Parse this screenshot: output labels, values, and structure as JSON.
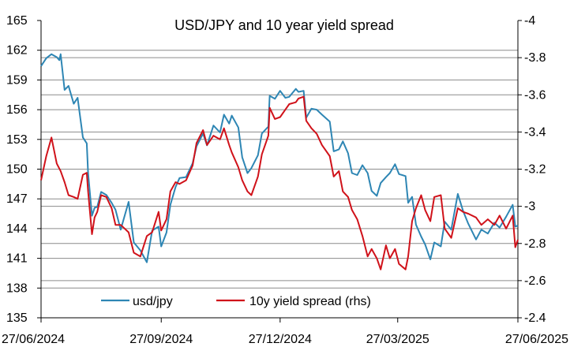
{
  "chart_data": {
    "type": "line",
    "title": "USD/JPY and 10 year yield spread",
    "xlabel": "",
    "ylabel": "",
    "x_tick_labels": [
      "27/06/2024",
      "27/09/2024",
      "27/12/2024",
      "27/03/2025",
      "27/06/2025"
    ],
    "x_range": [
      "27/06/2024",
      "27/06/2025"
    ],
    "y_left": {
      "ylim": [
        135,
        165
      ],
      "ticks": [
        "135",
        "138",
        "141",
        "144",
        "147",
        "150",
        "153",
        "156",
        "159",
        "162",
        "165"
      ]
    },
    "y_right": {
      "ylim": [
        -2.4,
        -4
      ],
      "inverted": true,
      "ticks": [
        "-2.4",
        "-2.6",
        "-2.8",
        "-3",
        "-3.2",
        "-3.4",
        "-3.6",
        "-3.8",
        "-4"
      ]
    },
    "grid": "horizontal",
    "legend_position": "bottom",
    "series": [
      {
        "name": "usd/jpy",
        "axis": "left",
        "color": "#2e86b4",
        "points": [
          [
            "2024-06-27",
            160.4
          ],
          [
            "2024-07-01",
            161.2
          ],
          [
            "2024-07-05",
            161.6
          ],
          [
            "2024-07-09",
            161.3
          ],
          [
            "2024-07-11",
            161.0
          ],
          [
            "2024-07-12",
            161.6
          ],
          [
            "2024-07-15",
            158.0
          ],
          [
            "2024-07-18",
            158.4
          ],
          [
            "2024-07-22",
            156.6
          ],
          [
            "2024-07-25",
            157.2
          ],
          [
            "2024-07-29",
            153.2
          ],
          [
            "2024-08-01",
            152.6
          ],
          [
            "2024-08-02",
            149.6
          ],
          [
            "2024-08-05",
            145.3
          ],
          [
            "2024-08-07",
            146.1
          ],
          [
            "2024-08-09",
            146.2
          ],
          [
            "2024-08-12",
            147.7
          ],
          [
            "2024-08-16",
            147.4
          ],
          [
            "2024-08-20",
            146.6
          ],
          [
            "2024-08-23",
            145.9
          ],
          [
            "2024-08-27",
            143.9
          ],
          [
            "2024-09-02",
            146.7
          ],
          [
            "2024-09-06",
            142.6
          ],
          [
            "2024-09-11",
            141.8
          ],
          [
            "2024-09-16",
            140.6
          ],
          [
            "2024-09-20",
            143.8
          ],
          [
            "2024-09-25",
            144.2
          ],
          [
            "2024-09-27",
            142.2
          ],
          [
            "2024-10-01",
            143.6
          ],
          [
            "2024-10-04",
            146.4
          ],
          [
            "2024-10-08",
            148.2
          ],
          [
            "2024-10-11",
            149.1
          ],
          [
            "2024-10-16",
            149.2
          ],
          [
            "2024-10-21",
            150.6
          ],
          [
            "2024-10-24",
            152.3
          ],
          [
            "2024-10-29",
            153.6
          ],
          [
            "2024-11-01",
            152.4
          ],
          [
            "2024-11-06",
            154.4
          ],
          [
            "2024-11-11",
            153.7
          ],
          [
            "2024-11-14",
            155.5
          ],
          [
            "2024-11-18",
            154.6
          ],
          [
            "2024-11-20",
            155.4
          ],
          [
            "2024-11-25",
            154.2
          ],
          [
            "2024-11-28",
            151.2
          ],
          [
            "2024-12-02",
            149.6
          ],
          [
            "2024-12-05",
            150.1
          ],
          [
            "2024-12-10",
            151.4
          ],
          [
            "2024-12-13",
            153.6
          ],
          [
            "2024-12-18",
            154.3
          ],
          [
            "2024-12-19",
            157.4
          ],
          [
            "2024-12-23",
            157.1
          ],
          [
            "2024-12-27",
            157.9
          ],
          [
            "2024-12-31",
            157.2
          ],
          [
            "2025-01-03",
            157.3
          ],
          [
            "2025-01-08",
            158.1
          ],
          [
            "2025-01-10",
            157.8
          ],
          [
            "2025-01-14",
            157.9
          ],
          [
            "2025-01-16",
            155.2
          ],
          [
            "2025-01-20",
            156.1
          ],
          [
            "2025-01-24",
            156.0
          ],
          [
            "2025-01-28",
            155.5
          ],
          [
            "2025-02-03",
            154.8
          ],
          [
            "2025-02-06",
            151.8
          ],
          [
            "2025-02-10",
            152.0
          ],
          [
            "2025-02-13",
            152.8
          ],
          [
            "2025-02-17",
            151.6
          ],
          [
            "2025-02-20",
            149.6
          ],
          [
            "2025-02-24",
            149.4
          ],
          [
            "2025-02-28",
            150.4
          ],
          [
            "2025-03-04",
            149.6
          ],
          [
            "2025-03-07",
            147.8
          ],
          [
            "2025-03-11",
            147.3
          ],
          [
            "2025-03-14",
            148.6
          ],
          [
            "2025-03-18",
            149.2
          ],
          [
            "2025-03-21",
            149.6
          ],
          [
            "2025-03-25",
            150.5
          ],
          [
            "2025-03-28",
            149.5
          ],
          [
            "2025-04-02",
            149.3
          ],
          [
            "2025-04-04",
            146.6
          ],
          [
            "2025-04-07",
            147.2
          ],
          [
            "2025-04-10",
            144.4
          ],
          [
            "2025-04-14",
            143.2
          ],
          [
            "2025-04-17",
            142.4
          ],
          [
            "2025-04-21",
            140.9
          ],
          [
            "2025-04-24",
            142.6
          ],
          [
            "2025-04-29",
            142.2
          ],
          [
            "2025-05-02",
            144.7
          ],
          [
            "2025-05-07",
            143.9
          ],
          [
            "2025-05-12",
            147.5
          ],
          [
            "2025-05-16",
            145.8
          ],
          [
            "2025-05-20",
            144.5
          ],
          [
            "2025-05-26",
            142.9
          ],
          [
            "2025-05-30",
            143.9
          ],
          [
            "2025-06-04",
            143.5
          ],
          [
            "2025-06-09",
            144.6
          ],
          [
            "2025-06-13",
            144.1
          ],
          [
            "2025-06-18",
            145.2
          ],
          [
            "2025-06-23",
            146.4
          ],
          [
            "2025-06-25",
            144.2
          ],
          [
            "2025-06-27",
            144.3
          ]
        ]
      },
      {
        "name": "10y yield spread (rhs)",
        "axis": "right",
        "color": "#d0121a",
        "points": [
          [
            "2024-06-27",
            -3.14
          ],
          [
            "2024-07-01",
            -3.27
          ],
          [
            "2024-07-05",
            -3.37
          ],
          [
            "2024-07-09",
            -3.23
          ],
          [
            "2024-07-12",
            -3.19
          ],
          [
            "2024-07-15",
            -3.13
          ],
          [
            "2024-07-18",
            -3.06
          ],
          [
            "2024-07-22",
            -3.05
          ],
          [
            "2024-07-25",
            -3.04
          ],
          [
            "2024-07-29",
            -3.17
          ],
          [
            "2024-08-01",
            -3.18
          ],
          [
            "2024-08-02",
            -3.08
          ],
          [
            "2024-08-05",
            -2.85
          ],
          [
            "2024-08-07",
            -2.94
          ],
          [
            "2024-08-09",
            -2.97
          ],
          [
            "2024-08-12",
            -3.06
          ],
          [
            "2024-08-16",
            -3.05
          ],
          [
            "2024-08-20",
            -2.99
          ],
          [
            "2024-08-23",
            -2.9
          ],
          [
            "2024-08-27",
            -2.9
          ],
          [
            "2024-09-02",
            -2.86
          ],
          [
            "2024-09-06",
            -2.75
          ],
          [
            "2024-09-11",
            -2.73
          ],
          [
            "2024-09-16",
            -2.84
          ],
          [
            "2024-09-20",
            -2.86
          ],
          [
            "2024-09-25",
            -2.97
          ],
          [
            "2024-09-27",
            -2.87
          ],
          [
            "2024-10-01",
            -2.93
          ],
          [
            "2024-10-04",
            -3.08
          ],
          [
            "2024-10-08",
            -3.13
          ],
          [
            "2024-10-11",
            -3.12
          ],
          [
            "2024-10-16",
            -3.14
          ],
          [
            "2024-10-21",
            -3.22
          ],
          [
            "2024-10-24",
            -3.34
          ],
          [
            "2024-10-29",
            -3.41
          ],
          [
            "2024-11-01",
            -3.33
          ],
          [
            "2024-11-06",
            -3.38
          ],
          [
            "2024-11-11",
            -3.36
          ],
          [
            "2024-11-14",
            -3.42
          ],
          [
            "2024-11-18",
            -3.33
          ],
          [
            "2024-11-20",
            -3.29
          ],
          [
            "2024-11-25",
            -3.21
          ],
          [
            "2024-11-28",
            -3.14
          ],
          [
            "2024-12-02",
            -3.08
          ],
          [
            "2024-12-05",
            -3.06
          ],
          [
            "2024-12-10",
            -3.16
          ],
          [
            "2024-12-13",
            -3.28
          ],
          [
            "2024-12-18",
            -3.38
          ],
          [
            "2024-12-19",
            -3.53
          ],
          [
            "2024-12-23",
            -3.47
          ],
          [
            "2024-12-27",
            -3.48
          ],
          [
            "2024-12-31",
            -3.52
          ],
          [
            "2025-01-03",
            -3.55
          ],
          [
            "2025-01-08",
            -3.56
          ],
          [
            "2025-01-10",
            -3.58
          ],
          [
            "2025-01-14",
            -3.59
          ],
          [
            "2025-01-16",
            -3.46
          ],
          [
            "2025-01-20",
            -3.42
          ],
          [
            "2025-01-24",
            -3.39
          ],
          [
            "2025-01-28",
            -3.33
          ],
          [
            "2025-02-03",
            -3.27
          ],
          [
            "2025-02-06",
            -3.16
          ],
          [
            "2025-02-10",
            -3.19
          ],
          [
            "2025-02-13",
            -3.08
          ],
          [
            "2025-02-17",
            -3.05
          ],
          [
            "2025-02-20",
            -2.98
          ],
          [
            "2025-02-24",
            -2.93
          ],
          [
            "2025-02-28",
            -2.84
          ],
          [
            "2025-03-04",
            -2.73
          ],
          [
            "2025-03-07",
            -2.77
          ],
          [
            "2025-03-11",
            -2.72
          ],
          [
            "2025-03-14",
            -2.66
          ],
          [
            "2025-03-18",
            -2.79
          ],
          [
            "2025-03-21",
            -2.72
          ],
          [
            "2025-03-25",
            -2.77
          ],
          [
            "2025-03-28",
            -2.69
          ],
          [
            "2025-04-02",
            -2.66
          ],
          [
            "2025-04-04",
            -2.73
          ],
          [
            "2025-04-07",
            -2.92
          ],
          [
            "2025-04-10",
            -2.99
          ],
          [
            "2025-04-14",
            -3.06
          ],
          [
            "2025-04-17",
            -2.98
          ],
          [
            "2025-04-21",
            -2.92
          ],
          [
            "2025-04-24",
            -3.05
          ],
          [
            "2025-04-29",
            -3.06
          ],
          [
            "2025-05-02",
            -2.88
          ],
          [
            "2025-05-07",
            -2.83
          ],
          [
            "2025-05-12",
            -2.99
          ],
          [
            "2025-05-16",
            -2.97
          ],
          [
            "2025-05-20",
            -2.96
          ],
          [
            "2025-05-26",
            -2.94
          ],
          [
            "2025-05-30",
            -2.9
          ],
          [
            "2025-06-04",
            -2.93
          ],
          [
            "2025-06-09",
            -2.9
          ],
          [
            "2025-06-13",
            -2.95
          ],
          [
            "2025-06-18",
            -2.88
          ],
          [
            "2025-06-23",
            -2.95
          ],
          [
            "2025-06-25",
            -2.78
          ],
          [
            "2025-06-27",
            -2.82
          ]
        ]
      }
    ]
  }
}
